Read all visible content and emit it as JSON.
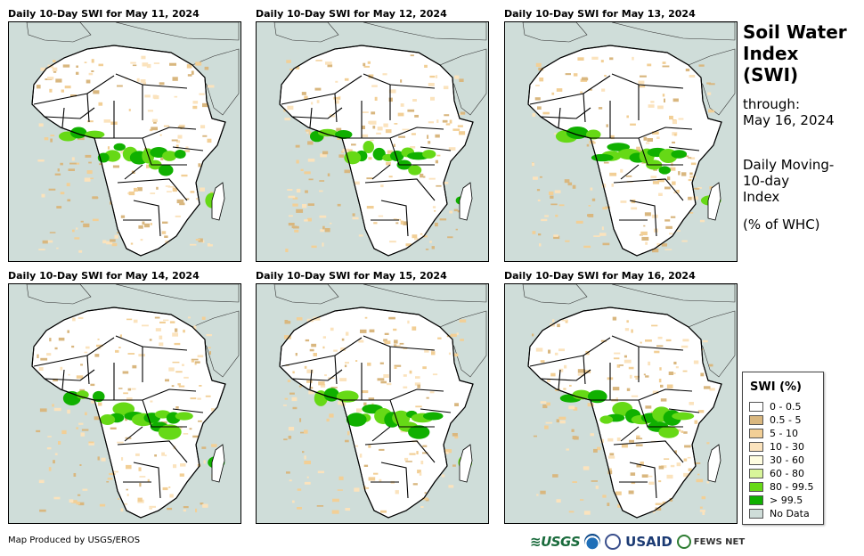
{
  "panels": [
    {
      "title": "Daily 10-Day SWI for May 11, 2024"
    },
    {
      "title": "Daily 10-Day SWI for May 12, 2024"
    },
    {
      "title": "Daily 10-Day SWI for May 13, 2024"
    },
    {
      "title": "Daily 10-Day SWI for May 14, 2024"
    },
    {
      "title": "Daily 10-Day SWI for May 15, 2024"
    },
    {
      "title": "Daily 10-Day SWI for May 16, 2024"
    }
  ],
  "side": {
    "title_line1": "Soil Water",
    "title_line2": "Index",
    "title_line3": "(SWI)",
    "through_label": "through:",
    "through_date": "May 16, 2024",
    "desc_line1": "Daily Moving-",
    "desc_line2": "10-day",
    "desc_line3": "Index",
    "units": "(% of WHC)"
  },
  "legend": {
    "title": "SWI (%)",
    "items": [
      {
        "label": "0 - 0.5",
        "color": "#ffffff"
      },
      {
        "label": "0.5 - 5",
        "color": "#d9b77f"
      },
      {
        "label": "5 - 10",
        "color": "#f2cf96"
      },
      {
        "label": "10 - 30",
        "color": "#fbe3bd"
      },
      {
        "label": "30 - 60",
        "color": "#fffde0"
      },
      {
        "label": "60 - 80",
        "color": "#d8f59a"
      },
      {
        "label": "80 - 99.5",
        "color": "#66d916"
      },
      {
        "label": "> 99.5",
        "color": "#10b000"
      },
      {
        "label": "No Data",
        "color": "#cfddd9"
      }
    ]
  },
  "credit": "Map Produced by USGS/EROS",
  "logos": {
    "usgs": "≋USGS",
    "usaid": "USAID",
    "fews": "FEWS NET"
  }
}
